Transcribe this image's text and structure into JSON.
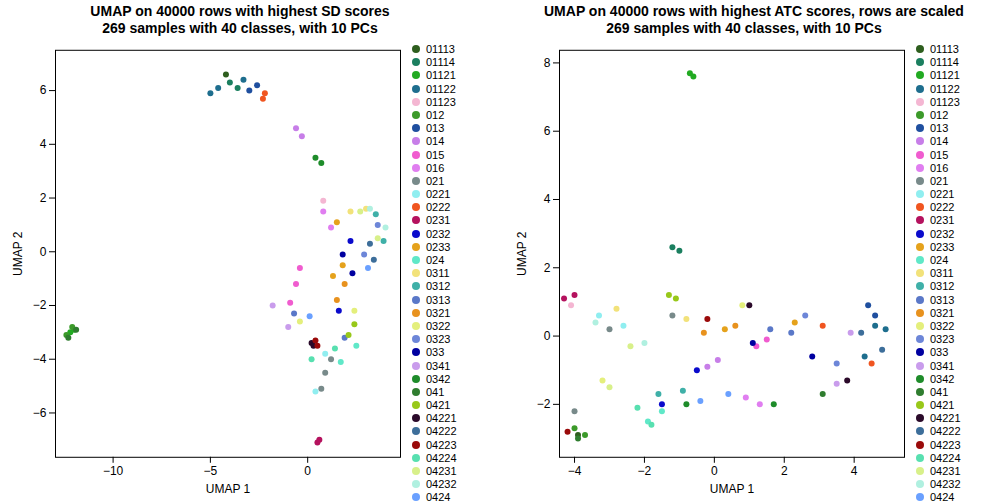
{
  "chart_data": [
    {
      "type": "scatter",
      "title": "UMAP on 40000 rows with highest SD scores",
      "subtitle": "269 samples with 40 classes, with 10 PCs",
      "x_label": "UMAP 1",
      "y_label": "UMAP 2",
      "xlim": [
        -12.96,
        4.77
      ],
      "ylim": [
        -7.65,
        7.5
      ],
      "xticks": [
        -10,
        -5,
        0
      ],
      "yticks": [
        -6,
        -4,
        -2,
        0,
        2,
        4,
        6
      ],
      "legend": "right",
      "series": [
        {
          "name": "01113",
          "color": "#2e5e1e",
          "x": [
            -4.2
          ],
          "y": [
            6.6
          ]
        },
        {
          "name": "01114",
          "color": "#1b7f5f",
          "x": [
            -4.0,
            -3.6
          ],
          "y": [
            6.3,
            6.1
          ]
        },
        {
          "name": "01121",
          "color": "#22aa22",
          "x": [
            -12.2,
            -12.0
          ],
          "y": [
            -3.0,
            -2.9
          ]
        },
        {
          "name": "01122",
          "color": "#1e6e8e",
          "x": [
            -5.0,
            -4.6,
            -3.3
          ],
          "y": [
            5.9,
            6.1,
            6.4
          ]
        },
        {
          "name": "01123",
          "color": "#f4b6d2",
          "x": [
            0.8
          ],
          "y": [
            1.9
          ]
        },
        {
          "name": "012",
          "color": "#3c9a2a",
          "x": [
            -12.4,
            -12.1
          ],
          "y": [
            -3.1,
            -2.8
          ]
        },
        {
          "name": "013",
          "color": "#1f4f9f",
          "x": [
            -3.0,
            -2.6
          ],
          "y": [
            6.0,
            6.2
          ]
        },
        {
          "name": "014",
          "color": "#c77ee8",
          "x": [
            -0.6,
            -0.3
          ],
          "y": [
            4.6,
            4.3
          ]
        },
        {
          "name": "015",
          "color": "#f05ccf",
          "x": [
            -0.4,
            -0.6,
            -0.9
          ],
          "y": [
            -0.6,
            -1.2,
            -1.9
          ]
        },
        {
          "name": "016",
          "color": "#e07ef0",
          "x": [
            0.8,
            1.2
          ],
          "y": [
            1.5,
            0.9
          ]
        },
        {
          "name": "021",
          "color": "#788a8a",
          "x": [
            0.9,
            1.2,
            0.7
          ],
          "y": [
            -4.5,
            -4.0,
            -5.1
          ]
        },
        {
          "name": "0221",
          "color": "#90eef0",
          "x": [
            0.4,
            0.9
          ],
          "y": [
            -5.2,
            -3.8
          ]
        },
        {
          "name": "0222",
          "color": "#f05520",
          "x": [
            -2.3,
            -2.2
          ],
          "y": [
            5.7,
            5.9
          ]
        },
        {
          "name": "0231",
          "color": "#b5125e",
          "x": [
            0.6,
            0.5
          ],
          "y": [
            -7.0,
            -7.1
          ]
        },
        {
          "name": "0232",
          "color": "#0a0acc",
          "x": [
            2.2,
            1.6
          ],
          "y": [
            0.4,
            -2.2
          ]
        },
        {
          "name": "0233",
          "color": "#e5a21c",
          "x": [
            1.8,
            1.3,
            1.5
          ],
          "y": [
            -0.5,
            -0.9,
            1.1
          ]
        },
        {
          "name": "024",
          "color": "#60e8c8",
          "x": [
            2.5,
            1.7
          ],
          "y": [
            -3.5,
            -4.1
          ]
        },
        {
          "name": "0311",
          "color": "#f2e27a",
          "x": [
            2.2,
            3.0
          ],
          "y": [
            1.5,
            1.6
          ]
        },
        {
          "name": "0312",
          "color": "#3fb0a8",
          "x": [
            3.5,
            3.9
          ],
          "y": [
            1.4,
            0.4
          ]
        },
        {
          "name": "0313",
          "color": "#5a78c8",
          "x": [
            -0.7,
            1.9
          ],
          "y": [
            -2.3,
            -3.2
          ]
        },
        {
          "name": "0321",
          "color": "#e8921e",
          "x": [
            1.5,
            1.9
          ],
          "y": [
            -1.8,
            -1.2
          ]
        },
        {
          "name": "0322",
          "color": "#e4ef7c",
          "x": [
            2.4,
            -0.4
          ],
          "y": [
            -2.2,
            -2.6
          ]
        },
        {
          "name": "0323",
          "color": "#6d86d8",
          "x": [
            2.9,
            3.6
          ],
          "y": [
            -0.1,
            1.0
          ]
        },
        {
          "name": "033",
          "color": "#0000a0",
          "x": [
            1.8,
            2.3
          ],
          "y": [
            -0.1,
            -0.8
          ]
        },
        {
          "name": "0341",
          "color": "#c99cec",
          "x": [
            -1.8,
            -1.0
          ],
          "y": [
            -2.0,
            -2.8
          ]
        },
        {
          "name": "0342",
          "color": "#1e8c2a",
          "x": [
            0.4,
            0.7
          ],
          "y": [
            3.5,
            3.3
          ]
        },
        {
          "name": "041",
          "color": "#2f7d2f",
          "x": [
            -12.3,
            -11.9
          ],
          "y": [
            -3.2,
            -2.9
          ]
        },
        {
          "name": "0421",
          "color": "#98c81a",
          "x": [
            2.1,
            2.4
          ],
          "y": [
            -3.1,
            -2.7
          ]
        },
        {
          "name": "04221",
          "color": "#2b0a2a",
          "x": [
            0.2,
            0.3
          ],
          "y": [
            -3.4,
            -3.5
          ]
        },
        {
          "name": "04222",
          "color": "#3d6e9a",
          "x": [
            3.2,
            3.4
          ],
          "y": [
            0.3,
            -0.3
          ]
        },
        {
          "name": "04223",
          "color": "#9a0a0a",
          "x": [
            0.4,
            0.5
          ],
          "y": [
            -3.3,
            -3.5
          ]
        },
        {
          "name": "04224",
          "color": "#58e0b0",
          "x": [
            0.2,
            1.4
          ],
          "y": [
            -4.0,
            -3.6
          ]
        },
        {
          "name": "04231",
          "color": "#d8f08a",
          "x": [
            3.6,
            2.7
          ],
          "y": [
            0.5,
            1.5
          ]
        },
        {
          "name": "04232",
          "color": "#b0f0e0",
          "x": [
            3.2,
            4.0
          ],
          "y": [
            1.6,
            0.9
          ]
        },
        {
          "name": "0424",
          "color": "#6aa0ff",
          "x": [
            3.1,
            0.1
          ],
          "y": [
            -0.6,
            -2.4
          ]
        }
      ]
    },
    {
      "type": "scatter",
      "title": "UMAP on 40000 rows with highest ATC scores, rows are scaled",
      "subtitle": "269 samples with 40 classes, with 10 PCs",
      "x_label": "UMAP 1",
      "y_label": "UMAP 2",
      "xlim": [
        -4.43,
        5.44
      ],
      "ylim": [
        -3.55,
        8.37
      ],
      "xticks": [
        -4,
        -2,
        0,
        2,
        4
      ],
      "yticks": [
        -2,
        0,
        2,
        4,
        6,
        8
      ],
      "legend": "right",
      "series": [
        {
          "name": "01113",
          "color": "#2e5e1e",
          "x": [
            -3.9
          ],
          "y": [
            -2.9
          ]
        },
        {
          "name": "01114",
          "color": "#1b7f5f",
          "x": [
            -1.2,
            -1.0
          ],
          "y": [
            2.6,
            2.5
          ]
        },
        {
          "name": "01121",
          "color": "#22aa22",
          "x": [
            -0.7,
            -0.6
          ],
          "y": [
            7.7,
            7.6
          ]
        },
        {
          "name": "01122",
          "color": "#1e6e8e",
          "x": [
            4.6,
            4.9,
            4.3
          ],
          "y": [
            0.3,
            0.2,
            -0.6
          ]
        },
        {
          "name": "01123",
          "color": "#f4b6d2",
          "x": [
            -4.1
          ],
          "y": [
            0.9
          ]
        },
        {
          "name": "012",
          "color": "#3c9a2a",
          "x": [
            -4.0,
            -3.7
          ],
          "y": [
            -2.7,
            -2.9
          ]
        },
        {
          "name": "013",
          "color": "#1f4f9f",
          "x": [
            4.4,
            4.6
          ],
          "y": [
            0.9,
            0.6
          ]
        },
        {
          "name": "014",
          "color": "#c77ee8",
          "x": [
            -0.2,
            0.1
          ],
          "y": [
            -0.9,
            -0.7
          ]
        },
        {
          "name": "015",
          "color": "#f05ccf",
          "x": [
            1.2,
            1.5
          ],
          "y": [
            -0.3,
            -0.1
          ]
        },
        {
          "name": "016",
          "color": "#e07ef0",
          "x": [
            0.9,
            1.3
          ],
          "y": [
            -1.8,
            -2.0
          ]
        },
        {
          "name": "021",
          "color": "#788a8a",
          "x": [
            -4.0,
            -3.0,
            -1.2
          ],
          "y": [
            -2.2,
            0.2,
            0.6
          ]
        },
        {
          "name": "0221",
          "color": "#90eef0",
          "x": [
            -3.3,
            -2.6
          ],
          "y": [
            0.6,
            0.3
          ]
        },
        {
          "name": "0222",
          "color": "#f05520",
          "x": [
            4.5,
            3.1
          ],
          "y": [
            -0.8,
            0.3
          ]
        },
        {
          "name": "0231",
          "color": "#b5125e",
          "x": [
            -4.3,
            -4.0
          ],
          "y": [
            1.1,
            1.2
          ]
        },
        {
          "name": "0232",
          "color": "#0a0acc",
          "x": [
            -1.5,
            -0.5
          ],
          "y": [
            -2.0,
            -1.0
          ]
        },
        {
          "name": "0233",
          "color": "#e5a21c",
          "x": [
            0.3,
            2.3
          ],
          "y": [
            0.2,
            0.4
          ]
        },
        {
          "name": "024",
          "color": "#60e8c8",
          "x": [
            -1.5,
            -1.9
          ],
          "y": [
            -2.2,
            -2.5
          ]
        },
        {
          "name": "0311",
          "color": "#f2e27a",
          "x": [
            -0.8,
            -2.8
          ],
          "y": [
            0.5,
            0.8
          ]
        },
        {
          "name": "0312",
          "color": "#3fb0a8",
          "x": [
            -1.6,
            -0.9
          ],
          "y": [
            -1.7,
            -1.6
          ]
        },
        {
          "name": "0313",
          "color": "#5a78c8",
          "x": [
            1.6,
            2.2
          ],
          "y": [
            0.2,
            0.1
          ]
        },
        {
          "name": "0321",
          "color": "#e8921e",
          "x": [
            0.6,
            -0.3
          ],
          "y": [
            0.3,
            0.1
          ]
        },
        {
          "name": "0322",
          "color": "#e4ef7c",
          "x": [
            -3.2,
            0.8
          ],
          "y": [
            -1.3,
            0.9
          ]
        },
        {
          "name": "0323",
          "color": "#6d86d8",
          "x": [
            2.6,
            3.5
          ],
          "y": [
            0.6,
            -0.8
          ]
        },
        {
          "name": "033",
          "color": "#0000a0",
          "x": [
            1.1,
            2.8
          ],
          "y": [
            -0.2,
            -0.6
          ]
        },
        {
          "name": "0341",
          "color": "#c99cec",
          "x": [
            3.9,
            3.5
          ],
          "y": [
            0.1,
            -1.4
          ]
        },
        {
          "name": "0342",
          "color": "#1e8c2a",
          "x": [
            -0.8,
            1.7
          ],
          "y": [
            -2.0,
            -2.0
          ]
        },
        {
          "name": "041",
          "color": "#2f7d2f",
          "x": [
            -3.9,
            3.1
          ],
          "y": [
            -3.0,
            -1.7
          ]
        },
        {
          "name": "0421",
          "color": "#98c81a",
          "x": [
            -1.3,
            -1.1
          ],
          "y": [
            1.2,
            1.1
          ]
        },
        {
          "name": "04221",
          "color": "#2b0a2a",
          "x": [
            1.0,
            3.8
          ],
          "y": [
            0.9,
            -1.3
          ]
        },
        {
          "name": "04222",
          "color": "#3d6e9a",
          "x": [
            4.2,
            4.8
          ],
          "y": [
            0.1,
            -0.4
          ]
        },
        {
          "name": "04223",
          "color": "#9a0a0a",
          "x": [
            -0.2,
            -4.2
          ],
          "y": [
            0.5,
            -2.8
          ]
        },
        {
          "name": "04224",
          "color": "#58e0b0",
          "x": [
            -1.8,
            -2.2
          ],
          "y": [
            -2.6,
            -2.1
          ]
        },
        {
          "name": "04231",
          "color": "#d8f08a",
          "x": [
            -2.4,
            -3.0
          ],
          "y": [
            -0.3,
            -1.5
          ]
        },
        {
          "name": "04232",
          "color": "#b0f0e0",
          "x": [
            -3.4,
            -2.0
          ],
          "y": [
            0.4,
            -0.2
          ]
        },
        {
          "name": "0424",
          "color": "#6aa0ff",
          "x": [
            -0.4,
            0.4
          ],
          "y": [
            -1.9,
            -1.7
          ]
        }
      ]
    }
  ]
}
